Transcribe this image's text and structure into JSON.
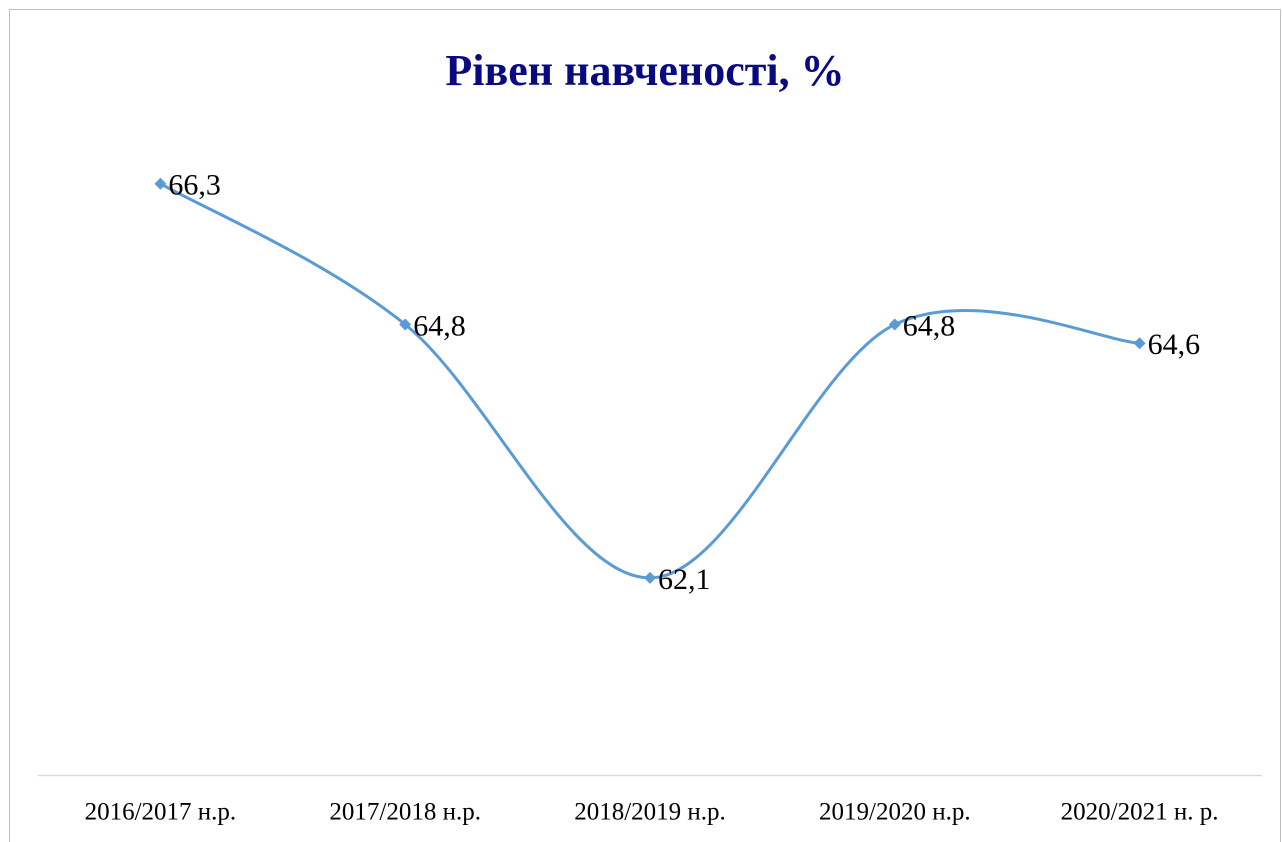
{
  "chart_data": {
    "type": "line",
    "title": "Рівен навченості, %",
    "categories": [
      "2016/2017 н.р.",
      "2017/2018 н.р.",
      "2018/2019 н.р.",
      "2019/2020 н.р.",
      "2020/2021 н. р."
    ],
    "values": [
      66.3,
      64.8,
      62.1,
      64.8,
      64.6
    ],
    "value_labels": [
      "66,3",
      "64,8",
      "62,1",
      "64,8",
      "64,6"
    ],
    "color": "#5b9bd5",
    "smooth": true,
    "ylim": [
      60,
      67
    ]
  }
}
